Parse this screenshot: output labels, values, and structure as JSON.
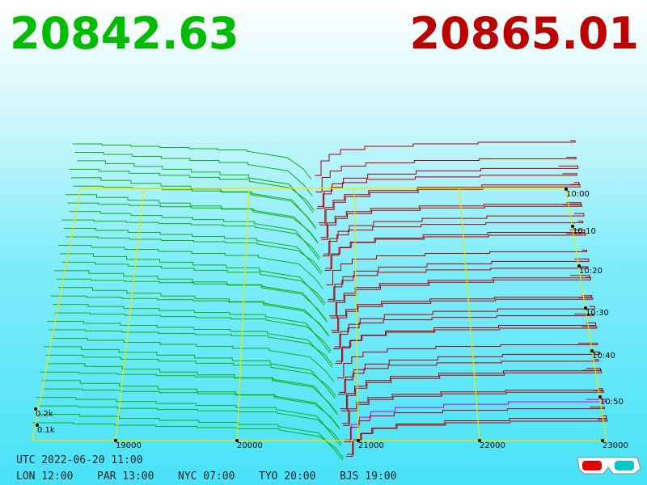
{
  "header": {
    "bid": "20842.63",
    "ask": "20865.01"
  },
  "axis": {
    "price_ticks": [
      "19000",
      "20000",
      "21000",
      "22000",
      "23000"
    ],
    "time_ticks": [
      "10:00",
      "10:10",
      "10:20",
      "10:30",
      "10:40",
      "10:50"
    ],
    "depth_ticks": [
      "0.2k",
      "0.1k"
    ]
  },
  "footer": {
    "utc": "UTC 2022-06-20 11:00",
    "cities": [
      "LON 12:00",
      "PAR 13:00",
      "NYC 07:00",
      "TYO 20:00",
      "BJS 19:00"
    ]
  }
}
